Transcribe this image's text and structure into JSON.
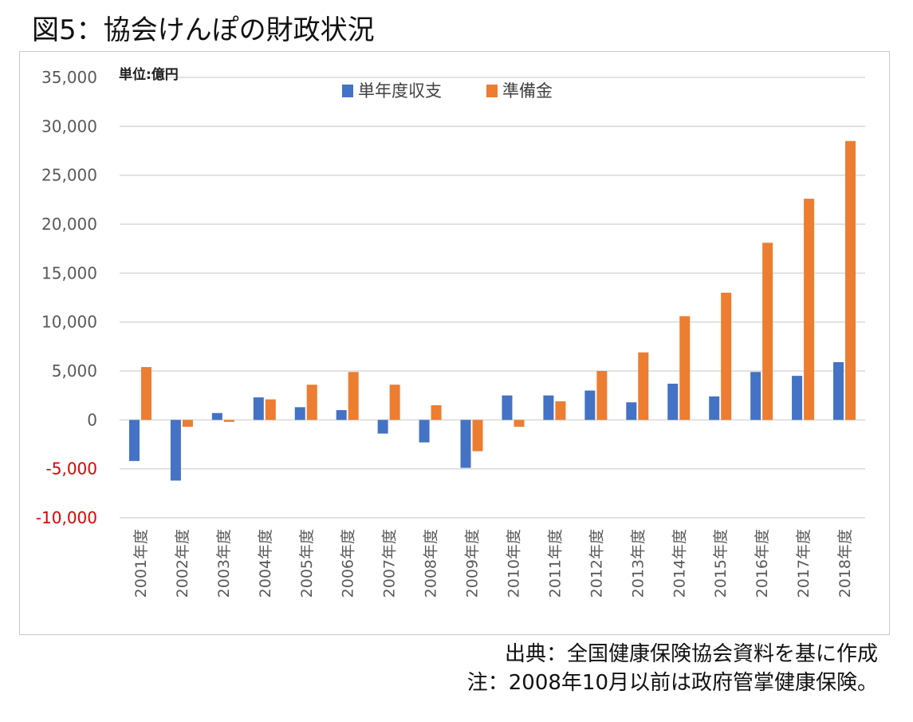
{
  "title": "図5：協会けんぽの財政状況",
  "source_line1": "出典：全国健康保険協会資料を基に作成",
  "source_line2": "注：2008年10月以前は政府管掌健康保険。",
  "colors": {
    "series1": "#4472C4",
    "series2": "#ED7D31",
    "negative_tick": "#E00000",
    "tick": "#595959",
    "grid": "#D9D9D9"
  },
  "chart_data": {
    "type": "bar",
    "unit_label": "単位:億円",
    "categories": [
      "2001年度",
      "2002年度",
      "2003年度",
      "2004年度",
      "2005年度",
      "2006年度",
      "2007年度",
      "2008年度",
      "2009年度",
      "2010年度",
      "2011年度",
      "2012年度",
      "2013年度",
      "2014年度",
      "2015年度",
      "2016年度",
      "2017年度",
      "2018年度"
    ],
    "series": [
      {
        "name": "単年度収支",
        "values": [
          -4200,
          -6200,
          700,
          2300,
          1300,
          1000,
          -1400,
          -2300,
          -4900,
          2500,
          2500,
          3000,
          1800,
          3700,
          2400,
          4900,
          4500,
          5900
        ]
      },
      {
        "name": "準備金",
        "values": [
          5400,
          -700,
          -200,
          2100,
          3600,
          4900,
          3600,
          1500,
          -3200,
          -700,
          1900,
          5000,
          6900,
          10600,
          13000,
          18100,
          22600,
          28500
        ]
      }
    ],
    "yticks": [
      -10000,
      -5000,
      0,
      5000,
      10000,
      15000,
      20000,
      25000,
      30000,
      35000
    ],
    "ytick_labels": [
      "-10,000",
      "-5,000",
      "0",
      "5,000",
      "10,000",
      "15,000",
      "20,000",
      "25,000",
      "30,000",
      "35,000"
    ],
    "ylim": [
      -10000,
      35000
    ],
    "grid": true,
    "legend": "top-center"
  }
}
